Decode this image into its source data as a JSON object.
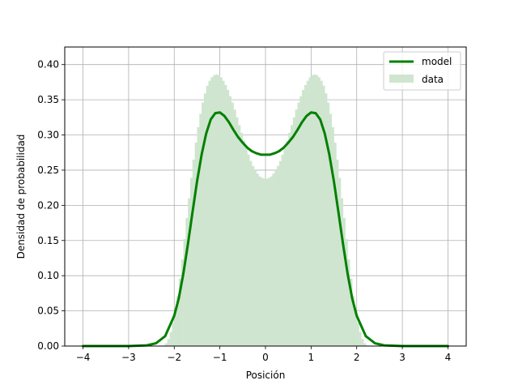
{
  "chart_data": {
    "type": "bar",
    "xlabel": "Posición",
    "ylabel": "Densidad de probabilidad",
    "xlim": [
      -4.4,
      4.4
    ],
    "ylim": [
      0,
      0.425
    ],
    "x_ticks": [
      -4,
      -3,
      -2,
      -1,
      0,
      1,
      2,
      3,
      4
    ],
    "x_tick_labels": [
      "−4",
      "−3",
      "−2",
      "−1",
      "0",
      "1",
      "2",
      "3",
      "4"
    ],
    "y_ticks": [
      0.0,
      0.05,
      0.1,
      0.15,
      0.2,
      0.25,
      0.3,
      0.35,
      0.4
    ],
    "y_tick_labels": [
      "0.00",
      "0.05",
      "0.10",
      "0.15",
      "0.20",
      "0.25",
      "0.30",
      "0.35",
      "0.40"
    ],
    "grid": true,
    "legend_position": "top-right",
    "legend": [
      {
        "label": "model",
        "kind": "line",
        "color": "#008000"
      },
      {
        "label": "data",
        "kind": "patch",
        "color": "#cfe5cf"
      }
    ],
    "series": [
      {
        "name": "data",
        "kind": "histogram",
        "color": "#cfe5cf",
        "bin_width": 0.05,
        "bin_start": -2.25,
        "values": [
          0.001,
          0.004,
          0.01,
          0.02,
          0.033,
          0.05,
          0.071,
          0.096,
          0.123,
          0.152,
          0.182,
          0.21,
          0.239,
          0.265,
          0.289,
          0.311,
          0.33,
          0.346,
          0.359,
          0.37,
          0.377,
          0.382,
          0.385,
          0.386,
          0.385,
          0.382,
          0.377,
          0.371,
          0.364,
          0.355,
          0.346,
          0.336,
          0.325,
          0.314,
          0.303,
          0.292,
          0.282,
          0.272,
          0.263,
          0.256,
          0.25,
          0.245,
          0.241,
          0.239,
          0.238,
          0.238,
          0.239,
          0.241,
          0.245,
          0.25,
          0.256,
          0.263,
          0.272,
          0.282,
          0.292,
          0.303,
          0.314,
          0.325,
          0.336,
          0.346,
          0.355,
          0.364,
          0.371,
          0.377,
          0.382,
          0.385,
          0.386,
          0.385,
          0.382,
          0.377,
          0.37,
          0.359,
          0.346,
          0.33,
          0.311,
          0.289,
          0.265,
          0.239,
          0.21,
          0.182,
          0.152,
          0.123,
          0.096,
          0.071,
          0.05,
          0.033,
          0.02,
          0.01,
          0.004,
          0.001
        ]
      },
      {
        "name": "model",
        "kind": "line",
        "color": "#008000",
        "x": [
          -4.0,
          -3.0,
          -2.6,
          -2.4,
          -2.2,
          -2.0,
          -1.9,
          -1.8,
          -1.7,
          -1.6,
          -1.5,
          -1.4,
          -1.3,
          -1.2,
          -1.1,
          -1.0,
          -0.9,
          -0.8,
          -0.7,
          -0.6,
          -0.5,
          -0.4,
          -0.3,
          -0.2,
          -0.1,
          0.0,
          0.1,
          0.2,
          0.3,
          0.4,
          0.5,
          0.6,
          0.7,
          0.8,
          0.9,
          1.0,
          1.1,
          1.2,
          1.3,
          1.4,
          1.5,
          1.6,
          1.7,
          1.8,
          1.9,
          2.0,
          2.2,
          2.4,
          2.6,
          3.0,
          4.0
        ],
        "y": [
          0.0,
          0.0,
          0.001,
          0.004,
          0.014,
          0.043,
          0.068,
          0.103,
          0.145,
          0.19,
          0.234,
          0.272,
          0.302,
          0.322,
          0.331,
          0.332,
          0.327,
          0.318,
          0.307,
          0.297,
          0.289,
          0.282,
          0.277,
          0.274,
          0.272,
          0.272,
          0.272,
          0.274,
          0.277,
          0.282,
          0.289,
          0.297,
          0.307,
          0.318,
          0.327,
          0.332,
          0.331,
          0.322,
          0.302,
          0.272,
          0.234,
          0.19,
          0.145,
          0.103,
          0.068,
          0.043,
          0.014,
          0.004,
          0.001,
          0.0,
          0.0
        ]
      }
    ]
  }
}
